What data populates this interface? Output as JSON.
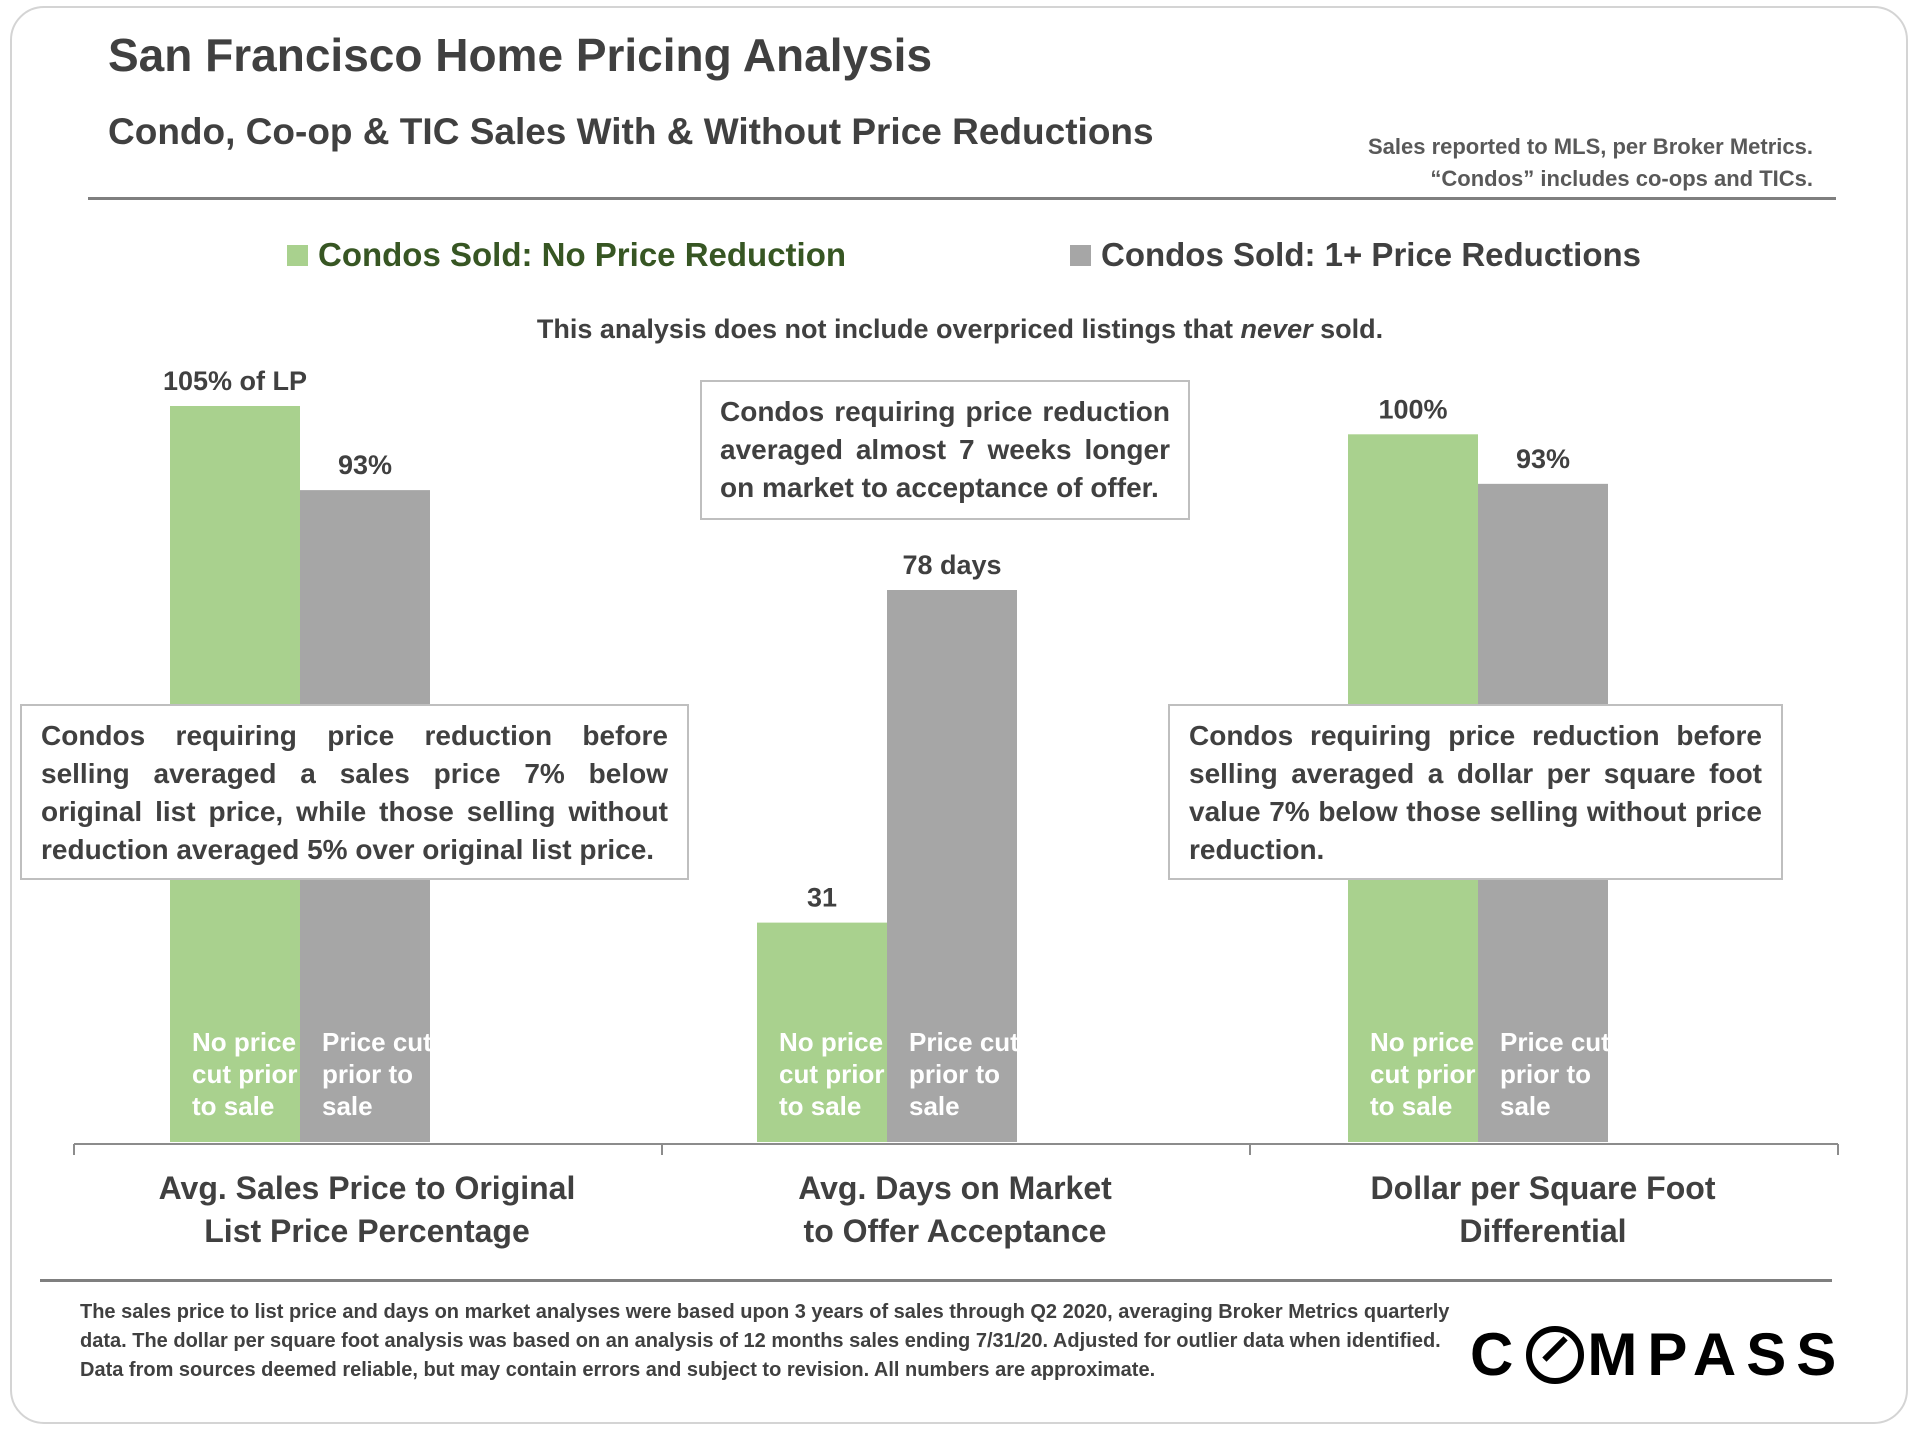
{
  "title": "San Francisco Home Pricing Analysis",
  "subtitle": "Condo, Co-op & TIC Sales With & Without Price Reductions",
  "source": {
    "line1": "Sales reported to MLS, per Broker Metrics.",
    "line2": "“Condos” includes co-ops and TICs."
  },
  "legend": [
    {
      "label": "Condos Sold: No Price Reduction",
      "color": "#a9d18e",
      "text_color": "#375623"
    },
    {
      "label": "Condos Sold: 1+ Price Reductions",
      "color": "#a6a6a6",
      "text_color": "#404040"
    }
  ],
  "note_top": {
    "before": "This analysis does not include overpriced listings that ",
    "emph": "never",
    "after": " sold."
  },
  "callouts": {
    "left": "Condos requiring price reduction before selling averaged a sales price 7% below original list price, while those selling without reduction averaged 5% over original list price.",
    "middle": "Condos requiring price reduction averaged almost 7 weeks longer on market to acceptance of offer.",
    "right": "Condos requiring price reduction before selling averaged a dollar per square foot value 7% below those selling without price reduction."
  },
  "chart_data": [
    {
      "type": "bar",
      "title": "Avg. Sales Price to Original List Price Percentage",
      "title_lines": [
        "Avg. Sales Price to Original",
        "List Price Percentage"
      ],
      "categories": [
        "No price cut prior to sale",
        "Price cut prior to sale"
      ],
      "bar_text": [
        [
          "No price",
          "cut prior",
          "to sale"
        ],
        [
          "Price cut",
          "prior to",
          "sale"
        ]
      ],
      "values": [
        105,
        93
      ],
      "data_labels": [
        "105% of LP",
        "93%"
      ],
      "ylim": [
        0,
        105
      ]
    },
    {
      "type": "bar",
      "title": "Avg. Days on Market to Offer Acceptance",
      "title_lines": [
        "Avg. Days on Market",
        "to Offer Acceptance"
      ],
      "categories": [
        "No price cut prior to sale",
        "Price cut prior to sale"
      ],
      "bar_text": [
        [
          "No price",
          "cut prior",
          "to sale"
        ],
        [
          "Price cut",
          "prior to",
          "sale"
        ]
      ],
      "values": [
        31,
        78
      ],
      "data_labels": [
        "31",
        "78 days"
      ],
      "ylim": [
        0,
        104
      ]
    },
    {
      "type": "bar",
      "title": "Dollar per Square Foot Differential",
      "title_lines": [
        "Dollar per Square Foot",
        "Differential"
      ],
      "categories": [
        "No price cut prior to sale",
        "Price cut prior to sale"
      ],
      "bar_text": [
        [
          "No price",
          "cut prior",
          "to sale"
        ],
        [
          "Price cut",
          "prior to",
          "sale"
        ]
      ],
      "values": [
        100,
        93
      ],
      "data_labels": [
        "100%",
        "93%"
      ],
      "ylim": [
        0,
        104
      ]
    }
  ],
  "footer": "The sales price to list price and days on market analyses were based upon 3 years of sales through Q2 2020, averaging Broker Metrics quarterly data. The dollar per square foot analysis was based on an analysis of 12 months sales ending 7/31/20.  Adjusted for outlier data when identified. Data from sources deemed reliable, but may contain errors and subject to revision. All numbers are approximate.",
  "logo": {
    "pre": "C",
    "post": "MPASS",
    "full": "COMPASS"
  }
}
